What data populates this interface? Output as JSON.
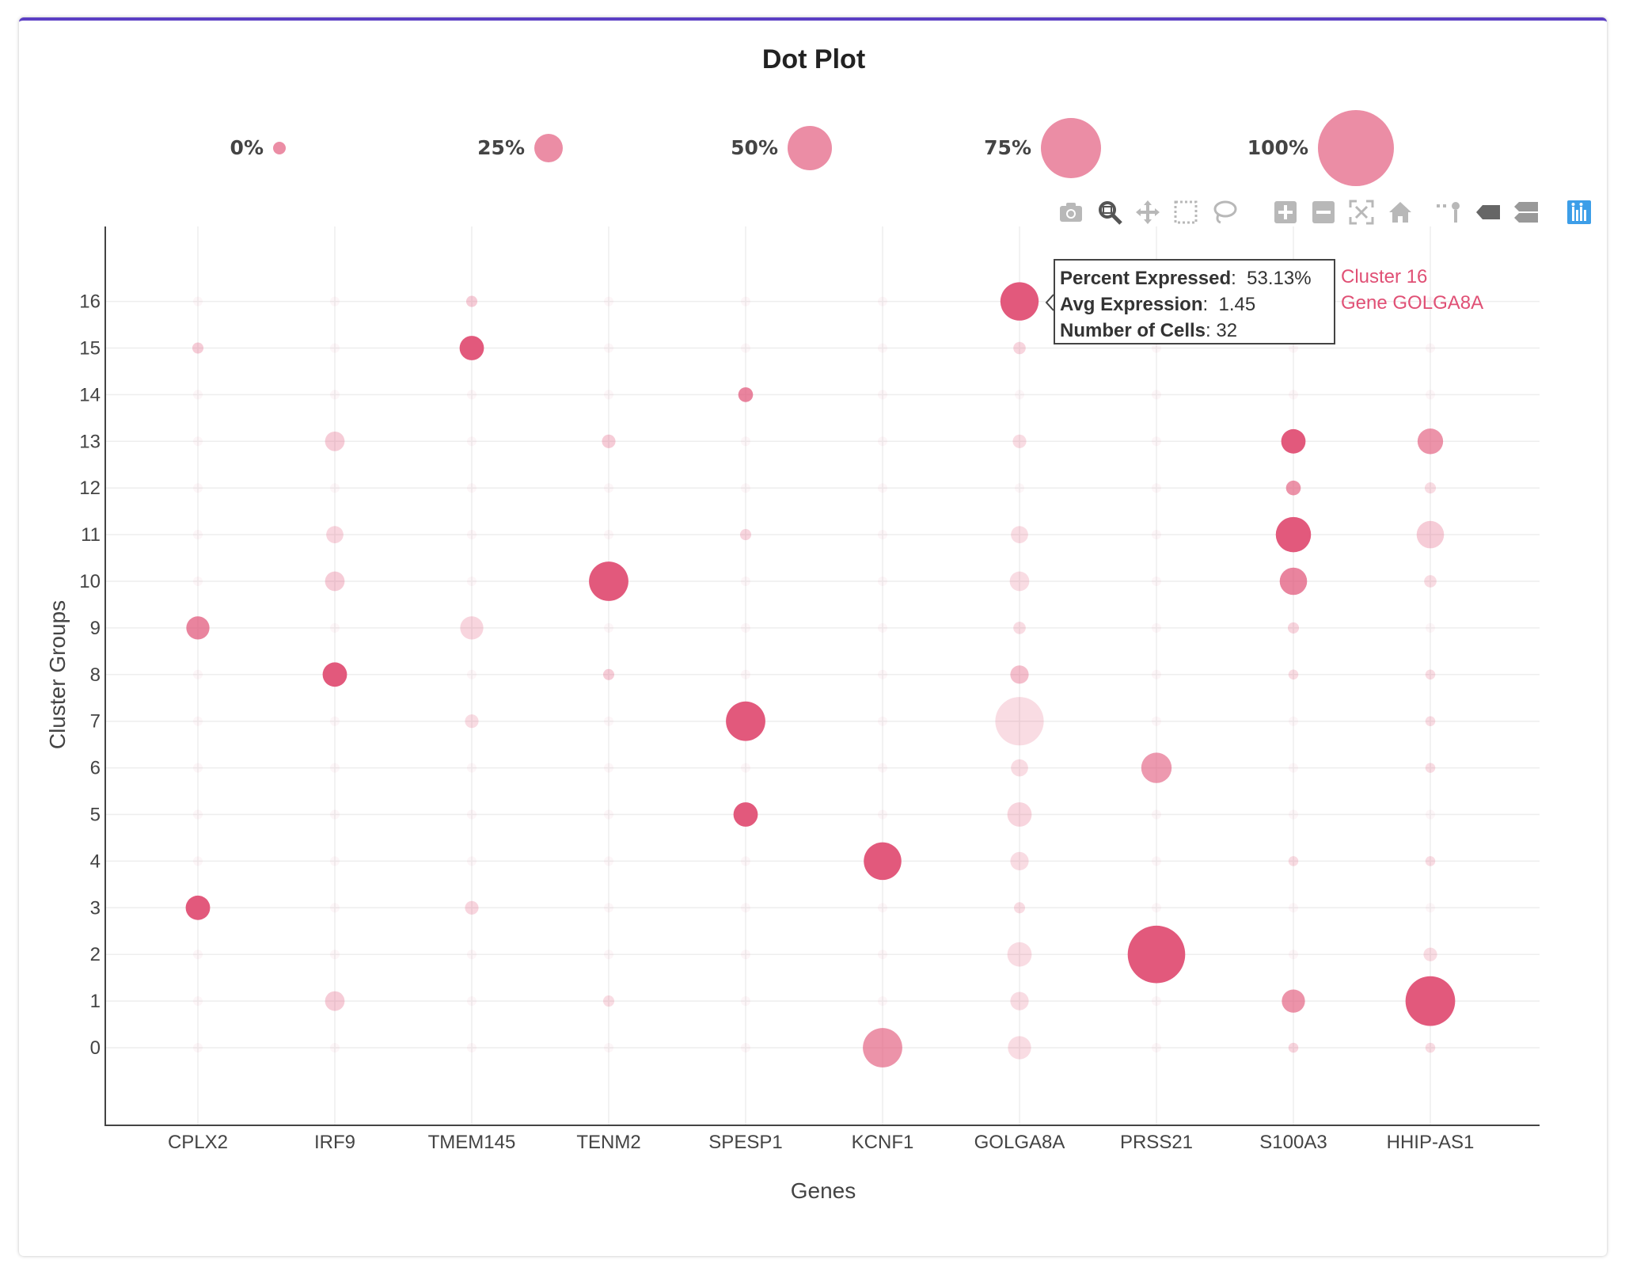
{
  "title": "Dot Plot",
  "legend": {
    "items": [
      {
        "label": "0%",
        "pct": 0
      },
      {
        "label": "25%",
        "pct": 25
      },
      {
        "label": "50%",
        "pct": 50
      },
      {
        "label": "75%",
        "pct": 75
      },
      {
        "label": "100%",
        "pct": 100
      }
    ]
  },
  "toolbar": {
    "buttons": [
      {
        "name": "camera-icon"
      },
      {
        "name": "zoom-icon"
      },
      {
        "name": "pan-icon"
      },
      {
        "name": "box-select-icon"
      },
      {
        "name": "lasso-select-icon"
      },
      {
        "name": "zoom-in-icon"
      },
      {
        "name": "zoom-out-icon"
      },
      {
        "name": "autoscale-icon"
      },
      {
        "name": "home-icon"
      },
      {
        "name": "spike-lines-icon"
      },
      {
        "name": "hover-closest-icon"
      },
      {
        "name": "hover-compare-icon"
      },
      {
        "name": "plotly-logo-icon"
      }
    ]
  },
  "tooltip": {
    "percent_label": "Percent Expressed",
    "percent_value": "53.13%",
    "avg_label": "Avg Expression",
    "avg_value": "1.45",
    "cells_label": "Number of Cells",
    "cells_value": "32",
    "cluster": "Cluster 16",
    "gene": "Gene GOLGA8A"
  },
  "colors": {
    "dot": "#e05075",
    "grid": "#eeeeee",
    "axis": "#444444",
    "text": "#444444"
  },
  "chart_data": {
    "type": "scatter",
    "xlabel": "Genes",
    "ylabel": "Cluster Groups",
    "categories": [
      "CPLX2",
      "IRF9",
      "TMEM145",
      "TENM2",
      "SPESP1",
      "KCNF1",
      "GOLGA8A",
      "PRSS21",
      "S100A3",
      "HHIP-AS1"
    ],
    "y_ticks": [
      0,
      1,
      2,
      3,
      4,
      5,
      6,
      7,
      8,
      9,
      10,
      11,
      12,
      13,
      14,
      15,
      16
    ],
    "ylim": [
      -1.6,
      17.6
    ],
    "grid": true,
    "points": [
      {
        "gene": "CPLX2",
        "cluster": 15,
        "pct": 8,
        "expr": 0.2
      },
      {
        "gene": "CPLX2",
        "cluster": 9,
        "pct": 28,
        "expr": 0.7
      },
      {
        "gene": "CPLX2",
        "cluster": 3,
        "pct": 30,
        "expr": 1.0
      },
      {
        "gene": "IRF9",
        "cluster": 13,
        "pct": 22,
        "expr": 0.2
      },
      {
        "gene": "IRF9",
        "cluster": 11,
        "pct": 18,
        "expr": 0.15
      },
      {
        "gene": "IRF9",
        "cluster": 10,
        "pct": 22,
        "expr": 0.2
      },
      {
        "gene": "IRF9",
        "cluster": 8,
        "pct": 30,
        "expr": 1.0
      },
      {
        "gene": "IRF9",
        "cluster": 1,
        "pct": 22,
        "expr": 0.2
      },
      {
        "gene": "TMEM145",
        "cluster": 16,
        "pct": 8,
        "expr": 0.2
      },
      {
        "gene": "TMEM145",
        "cluster": 15,
        "pct": 30,
        "expr": 1.0
      },
      {
        "gene": "TMEM145",
        "cluster": 9,
        "pct": 28,
        "expr": 0.15
      },
      {
        "gene": "TMEM145",
        "cluster": 7,
        "pct": 12,
        "expr": 0.1
      },
      {
        "gene": "TMEM145",
        "cluster": 3,
        "pct": 12,
        "expr": 0.15
      },
      {
        "gene": "TENM2",
        "cluster": 13,
        "pct": 12,
        "expr": 0.2
      },
      {
        "gene": "TENM2",
        "cluster": 10,
        "pct": 55,
        "expr": 1.0
      },
      {
        "gene": "TENM2",
        "cluster": 8,
        "pct": 8,
        "expr": 0.2
      },
      {
        "gene": "TENM2",
        "cluster": 1,
        "pct": 8,
        "expr": 0.1
      },
      {
        "gene": "SPESP1",
        "cluster": 14,
        "pct": 14,
        "expr": 0.7
      },
      {
        "gene": "SPESP1",
        "cluster": 11,
        "pct": 8,
        "expr": 0.15
      },
      {
        "gene": "SPESP1",
        "cluster": 7,
        "pct": 55,
        "expr": 1.0
      },
      {
        "gene": "SPESP1",
        "cluster": 5,
        "pct": 30,
        "expr": 1.0
      },
      {
        "gene": "KCNF1",
        "cluster": 4,
        "pct": 52,
        "expr": 1.0
      },
      {
        "gene": "KCNF1",
        "cluster": 0,
        "pct": 55,
        "expr": 0.6
      },
      {
        "gene": "GOLGA8A",
        "cluster": 16,
        "pct": 53.13,
        "expr": 1.45
      },
      {
        "gene": "GOLGA8A",
        "cluster": 15,
        "pct": 10,
        "expr": 0.15
      },
      {
        "gene": "GOLGA8A",
        "cluster": 13,
        "pct": 12,
        "expr": 0.1
      },
      {
        "gene": "GOLGA8A",
        "cluster": 11,
        "pct": 18,
        "expr": 0.1
      },
      {
        "gene": "GOLGA8A",
        "cluster": 10,
        "pct": 22,
        "expr": 0.1
      },
      {
        "gene": "GOLGA8A",
        "cluster": 9,
        "pct": 10,
        "expr": 0.1
      },
      {
        "gene": "GOLGA8A",
        "cluster": 8,
        "pct": 20,
        "expr": 0.3
      },
      {
        "gene": "GOLGA8A",
        "cluster": 7,
        "pct": 70,
        "expr": 0.1
      },
      {
        "gene": "GOLGA8A",
        "cluster": 6,
        "pct": 18,
        "expr": 0.1
      },
      {
        "gene": "GOLGA8A",
        "cluster": 5,
        "pct": 30,
        "expr": 0.15
      },
      {
        "gene": "GOLGA8A",
        "cluster": 4,
        "pct": 20,
        "expr": 0.1
      },
      {
        "gene": "GOLGA8A",
        "cluster": 3,
        "pct": 8,
        "expr": 0.1
      },
      {
        "gene": "GOLGA8A",
        "cluster": 2,
        "pct": 30,
        "expr": 0.1
      },
      {
        "gene": "GOLGA8A",
        "cluster": 1,
        "pct": 20,
        "expr": 0.1
      },
      {
        "gene": "GOLGA8A",
        "cluster": 0,
        "pct": 28,
        "expr": 0.1
      },
      {
        "gene": "PRSS21",
        "cluster": 6,
        "pct": 40,
        "expr": 0.55
      },
      {
        "gene": "PRSS21",
        "cluster": 2,
        "pct": 85,
        "expr": 1.0
      },
      {
        "gene": "S100A3",
        "cluster": 13,
        "pct": 30,
        "expr": 1.0
      },
      {
        "gene": "S100A3",
        "cluster": 12,
        "pct": 14,
        "expr": 0.6
      },
      {
        "gene": "S100A3",
        "cluster": 11,
        "pct": 48,
        "expr": 1.0
      },
      {
        "gene": "S100A3",
        "cluster": 10,
        "pct": 35,
        "expr": 0.7
      },
      {
        "gene": "S100A3",
        "cluster": 9,
        "pct": 8,
        "expr": 0.15
      },
      {
        "gene": "S100A3",
        "cluster": 8,
        "pct": 6,
        "expr": 0.1
      },
      {
        "gene": "S100A3",
        "cluster": 4,
        "pct": 6,
        "expr": 0.1
      },
      {
        "gene": "S100A3",
        "cluster": 1,
        "pct": 28,
        "expr": 0.6
      },
      {
        "gene": "S100A3",
        "cluster": 0,
        "pct": 6,
        "expr": 0.15
      },
      {
        "gene": "HHIP-AS1",
        "cluster": 13,
        "pct": 32,
        "expr": 0.6
      },
      {
        "gene": "HHIP-AS1",
        "cluster": 12,
        "pct": 8,
        "expr": 0.1
      },
      {
        "gene": "HHIP-AS1",
        "cluster": 11,
        "pct": 35,
        "expr": 0.2
      },
      {
        "gene": "HHIP-AS1",
        "cluster": 10,
        "pct": 10,
        "expr": 0.1
      },
      {
        "gene": "HHIP-AS1",
        "cluster": 8,
        "pct": 6,
        "expr": 0.1
      },
      {
        "gene": "HHIP-AS1",
        "cluster": 7,
        "pct": 6,
        "expr": 0.1
      },
      {
        "gene": "HHIP-AS1",
        "cluster": 6,
        "pct": 6,
        "expr": 0.1
      },
      {
        "gene": "HHIP-AS1",
        "cluster": 4,
        "pct": 6,
        "expr": 0.1
      },
      {
        "gene": "HHIP-AS1",
        "cluster": 2,
        "pct": 12,
        "expr": 0.1
      },
      {
        "gene": "HHIP-AS1",
        "cluster": 1,
        "pct": 72,
        "expr": 1.0
      },
      {
        "gene": "HHIP-AS1",
        "cluster": 0,
        "pct": 6,
        "expr": 0.1
      }
    ]
  }
}
